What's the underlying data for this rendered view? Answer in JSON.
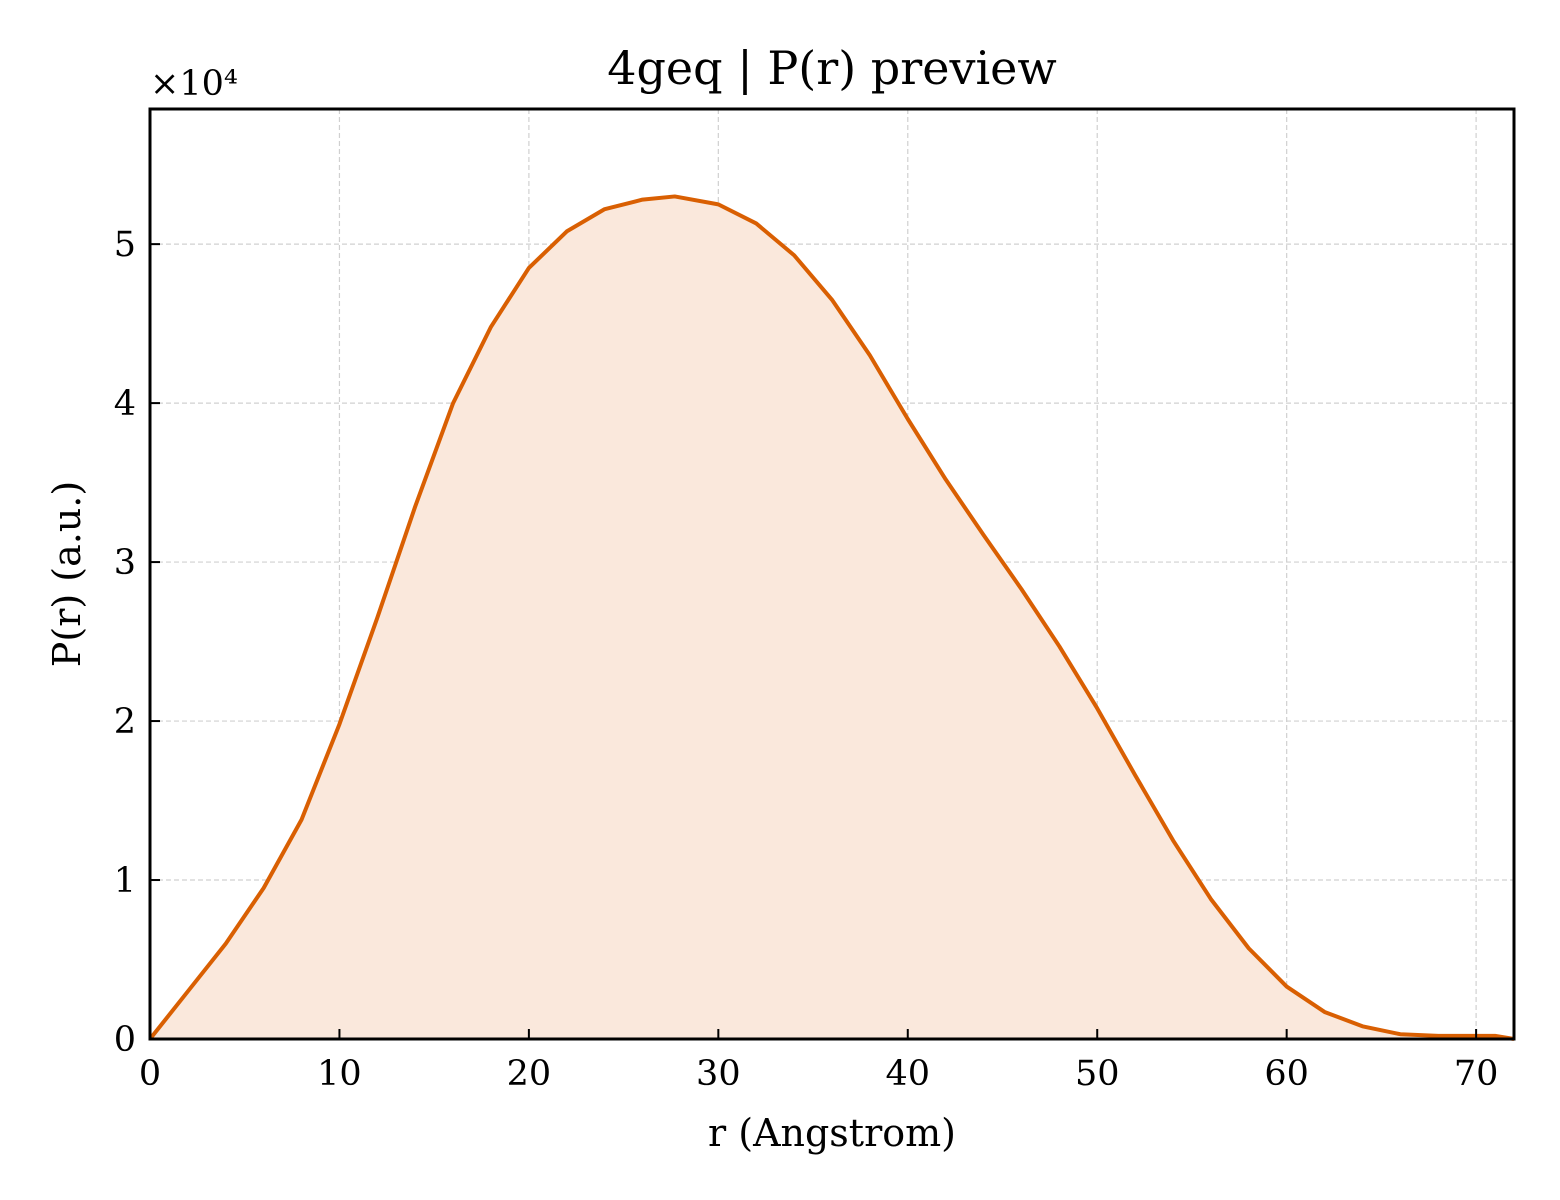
{
  "chart_data": {
    "type": "area",
    "title": "4geq | P(r) preview",
    "xlabel": "r (Angstrom)",
    "ylabel": "P(r) (a.u.)",
    "y_offset_label": "×10⁴",
    "xlim": [
      0,
      72
    ],
    "ylim": [
      0,
      5.85
    ],
    "y_scale_multiplier": 10000,
    "x_ticks": [
      0,
      10,
      20,
      30,
      40,
      50,
      60,
      70
    ],
    "y_ticks": [
      0,
      1,
      2,
      3,
      4,
      5
    ],
    "grid": true,
    "colors": {
      "line": "#d95f02",
      "fill": "#fae8dc"
    },
    "series": [
      {
        "x": [
          0,
          2,
          4,
          6,
          8,
          10,
          12,
          14,
          16,
          18,
          20,
          22,
          24,
          26,
          27.7,
          30,
          32,
          34,
          36,
          38,
          40,
          42,
          44,
          46,
          48,
          50,
          52,
          54,
          56,
          58,
          60,
          62,
          64,
          66,
          68,
          70,
          71,
          72
        ],
        "y": [
          0,
          0.3,
          0.6,
          0.95,
          1.38,
          1.98,
          2.65,
          3.35,
          4.0,
          4.48,
          4.85,
          5.08,
          5.22,
          5.28,
          5.3,
          5.25,
          5.13,
          4.93,
          4.65,
          4.3,
          3.9,
          3.52,
          3.17,
          2.83,
          2.47,
          2.08,
          1.66,
          1.25,
          0.88,
          0.57,
          0.33,
          0.17,
          0.08,
          0.03,
          0.02,
          0.02,
          0.02,
          0.0
        ]
      }
    ]
  }
}
